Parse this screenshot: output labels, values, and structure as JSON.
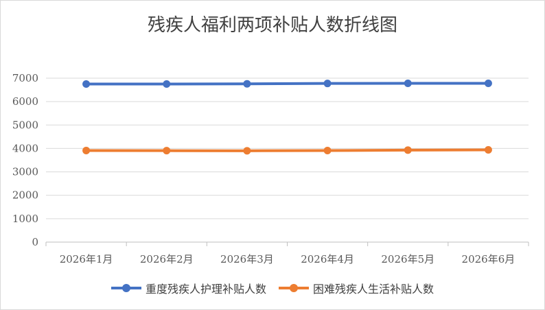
{
  "chart_data": {
    "type": "line",
    "title": "残疾人福利两项补贴人数折线图",
    "categories": [
      "2026年1月",
      "2026年2月",
      "2026年3月",
      "2026年4月",
      "2026年5月",
      "2026年6月"
    ],
    "series": [
      {
        "name": "重度残疾人护理补贴人数",
        "values": [
          6750,
          6750,
          6760,
          6775,
          6780,
          6780
        ],
        "color": "#4472c4"
      },
      {
        "name": "困难残疾人生活补贴人数",
        "values": [
          3910,
          3905,
          3900,
          3910,
          3930,
          3940
        ],
        "color": "#ed7d31"
      }
    ],
    "ylim": [
      0,
      7000
    ],
    "yticks": [
      0,
      1000,
      2000,
      3000,
      4000,
      5000,
      6000,
      7000
    ],
    "grid": true,
    "legend": "bottom"
  }
}
